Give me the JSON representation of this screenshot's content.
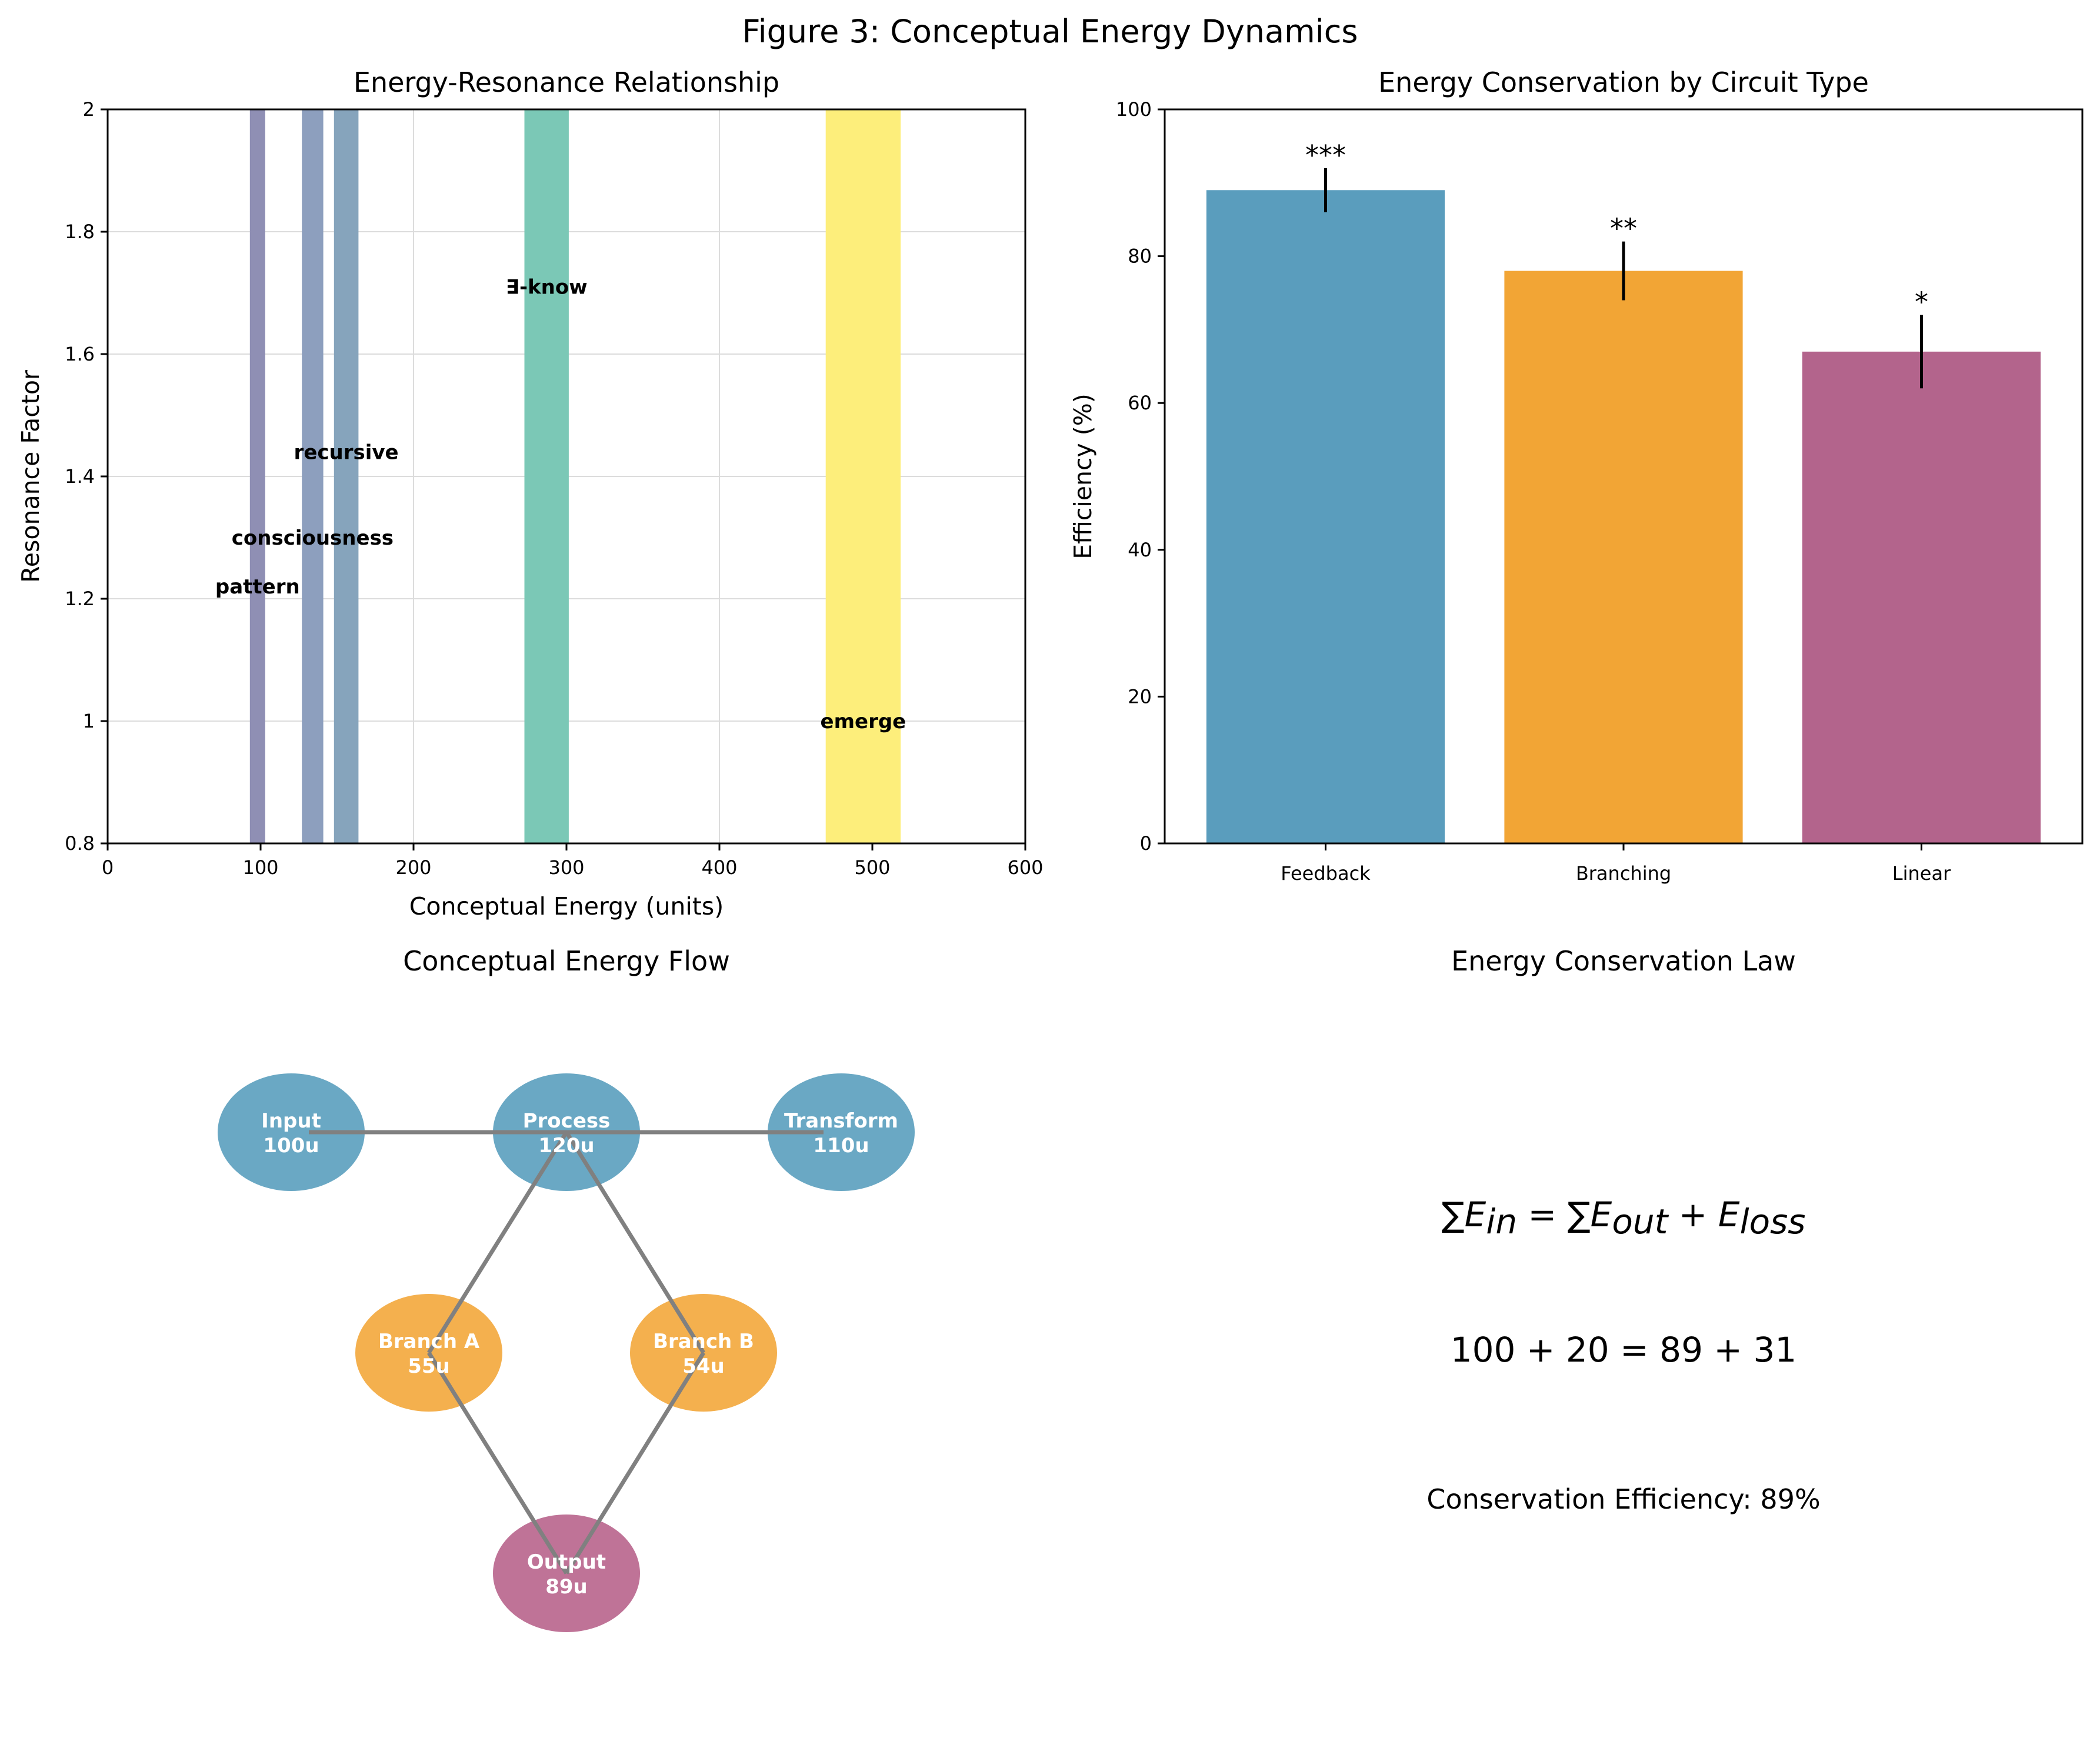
{
  "figure": {
    "title": "Figure 3: Conceptual Energy Dynamics"
  },
  "chart_data": [
    {
      "type": "bar",
      "orientation": "vertical-bands",
      "title": "Energy-Resonance Relationship",
      "xlabel": "Conceptual Energy (units)",
      "ylabel": "Resonance Factor",
      "xlim": [
        0,
        600
      ],
      "ylim": [
        0.8,
        2.0
      ],
      "xticks": [
        0,
        100,
        200,
        300,
        400,
        500,
        600
      ],
      "yticks": [
        0.8,
        1.0,
        1.2,
        1.4,
        1.6,
        1.8,
        2.0
      ],
      "grid": true,
      "bands": [
        {
          "label": "pattern",
          "x": 98,
          "width": 10,
          "label_y": 1.22,
          "color": "#8f8fb4"
        },
        {
          "label": "consciousness",
          "x": 134,
          "width": 14,
          "label_y": 1.3,
          "color": "#8d9fbe"
        },
        {
          "label": "recursive",
          "x": 156,
          "width": 16,
          "label_y": 1.44,
          "color": "#86a4bc"
        },
        {
          "label": "∃-know",
          "x": 287,
          "width": 29,
          "label_y": 1.71,
          "color": "#7bc8b6"
        },
        {
          "label": "emerge",
          "x": 494,
          "width": 49,
          "label_y": 1.0,
          "color": "#fdee7b"
        }
      ]
    },
    {
      "type": "bar",
      "title": "Energy Conservation by Circuit Type",
      "xlabel": "",
      "ylabel": "Efficiency (%)",
      "ylim": [
        0,
        100
      ],
      "yticks": [
        0,
        20,
        40,
        60,
        80,
        100
      ],
      "categories": [
        "Feedback",
        "Branching",
        "Linear"
      ],
      "values": [
        89,
        78,
        67
      ],
      "errors": [
        3,
        4,
        5
      ],
      "significance": [
        "***",
        "**",
        "*"
      ],
      "colors": [
        "#5a9dbd",
        "#f2a535",
        "#b3648c"
      ]
    },
    {
      "type": "diagram",
      "title": "Conceptual Energy Flow",
      "nodes": [
        {
          "id": "input",
          "name": "Input",
          "value": "100u",
          "color": "#6aa8c4"
        },
        {
          "id": "process",
          "name": "Process",
          "value": "120u",
          "color": "#6aa8c4"
        },
        {
          "id": "transform",
          "name": "Transform",
          "value": "110u",
          "color": "#6aa8c4"
        },
        {
          "id": "brancha",
          "name": "Branch A",
          "value": "55u",
          "color": "#f4b04e"
        },
        {
          "id": "branchb",
          "name": "Branch B",
          "value": "54u",
          "color": "#f4b04e"
        },
        {
          "id": "output",
          "name": "Output",
          "value": "89u",
          "color": "#bf7397"
        }
      ],
      "edges": [
        [
          "input",
          "process"
        ],
        [
          "process",
          "transform"
        ],
        [
          "process",
          "brancha"
        ],
        [
          "process",
          "branchb"
        ],
        [
          "brancha",
          "output"
        ],
        [
          "branchb",
          "output"
        ]
      ],
      "edge_color": "#808080"
    },
    {
      "type": "text",
      "title": "Energy Conservation Law",
      "numeric_equation": "100 + 20 = 89 + 31",
      "efficiency_text": "Conservation Efficiency: 89%"
    }
  ]
}
